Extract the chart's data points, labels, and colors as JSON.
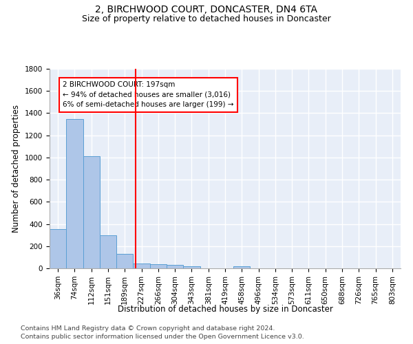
{
  "title": "2, BIRCHWOOD COURT, DONCASTER, DN4 6TA",
  "subtitle": "Size of property relative to detached houses in Doncaster",
  "xlabel": "Distribution of detached houses by size in Doncaster",
  "ylabel": "Number of detached properties",
  "footnote1": "Contains HM Land Registry data © Crown copyright and database right 2024.",
  "footnote2": "Contains public sector information licensed under the Open Government Licence v3.0.",
  "bin_labels": [
    "36sqm",
    "74sqm",
    "112sqm",
    "151sqm",
    "189sqm",
    "227sqm",
    "266sqm",
    "304sqm",
    "343sqm",
    "381sqm",
    "419sqm",
    "458sqm",
    "496sqm",
    "534sqm",
    "573sqm",
    "611sqm",
    "650sqm",
    "688sqm",
    "726sqm",
    "765sqm",
    "803sqm"
  ],
  "bar_values": [
    355,
    1345,
    1010,
    295,
    130,
    42,
    38,
    30,
    18,
    0,
    0,
    18,
    0,
    0,
    0,
    0,
    0,
    0,
    0,
    0,
    0
  ],
  "bar_color": "#aec6e8",
  "bar_edge_color": "#5a9fd4",
  "vline_x": 4.65,
  "vline_color": "red",
  "annotation_text": "2 BIRCHWOOD COURT: 197sqm\n← 94% of detached houses are smaller (3,016)\n6% of semi-detached houses are larger (199) →",
  "annotation_box_color": "white",
  "annotation_box_edge": "red",
  "ylim": [
    0,
    1800
  ],
  "yticks": [
    0,
    200,
    400,
    600,
    800,
    1000,
    1200,
    1400,
    1600,
    1800
  ],
  "bg_color": "#e8eef8",
  "grid_color": "white",
  "title_fontsize": 10,
  "subtitle_fontsize": 9,
  "axis_label_fontsize": 8.5,
  "tick_fontsize": 7.5,
  "annot_fontsize": 7.5,
  "footnote_fontsize": 6.8
}
